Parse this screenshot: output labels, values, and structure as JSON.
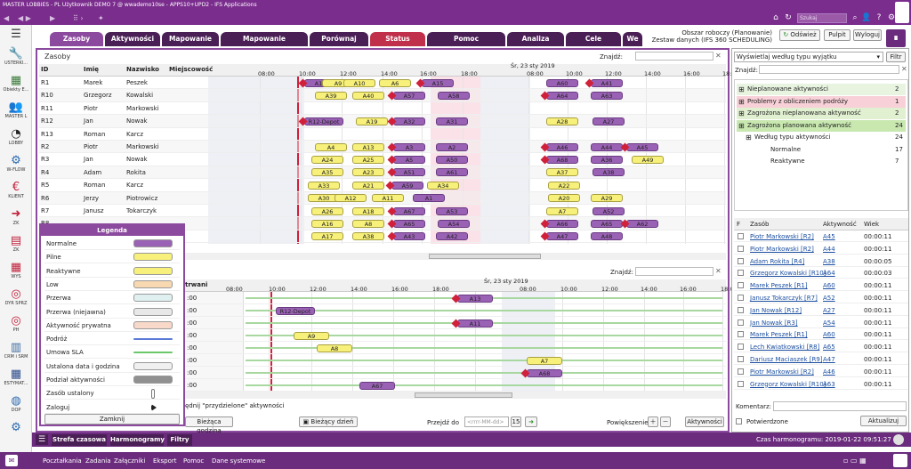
{
  "window": {
    "title": "MASTER LOBBIES - PL Użytkownik DEMO 7 @ wwademo10se - APPS10+UPD2 - IFS Applications",
    "search_placeholder": "Szukaj"
  },
  "sidebar": [
    {
      "label": "USTERKI...",
      "icon": "wrench-icon",
      "color": "#b03060"
    },
    {
      "label": "Obiekty E...",
      "icon": "building-icon",
      "color": "#3a7a3a"
    },
    {
      "label": "MASTER L",
      "icon": "people-icon",
      "color": "#222222"
    },
    {
      "label": "LOBBY",
      "icon": "gauge-icon",
      "color": "#222222"
    },
    {
      "label": "W-FLOW",
      "icon": "flow-icon",
      "color": "#2a6ab0"
    },
    {
      "label": "KLIENT",
      "icon": "euro-icon",
      "color": "#c0203a"
    },
    {
      "label": "ZK",
      "icon": "arrow-icon",
      "color": "#c0203a"
    },
    {
      "label": "ZK",
      "icon": "calendar-icon",
      "color": "#c0203a"
    },
    {
      "label": "WYS",
      "icon": "grid-icon",
      "color": "#c0203a"
    },
    {
      "label": "DYR SPRZ",
      "icon": "target-icon",
      "color": "#c0203a"
    },
    {
      "label": "PH",
      "icon": "target-icon",
      "color": "#c0203a"
    },
    {
      "label": "CRM i SRM",
      "icon": "book-icon",
      "color": "#3a6aa0"
    },
    {
      "label": "ESTYMAT...",
      "icon": "calc-icon",
      "color": "#2a4a8a"
    },
    {
      "label": "DOP",
      "icon": "globe-icon",
      "color": "#2a6ab0"
    },
    {
      "label": "",
      "icon": "gears-icon",
      "color": "#2a6ab0"
    }
  ],
  "tabs": [
    "Zasoby",
    "Aktywności",
    "Mapowanie",
    "Mapowanie zaawansowane",
    "Porównaj",
    "Status systemu",
    "Pomoc harmonogramu",
    "Analiza",
    "Cele",
    "We"
  ],
  "header": {
    "line1": "Obszar roboczy (Planowanie)",
    "line2": "Zestaw danych (IFS 360 SCHEDULING)",
    "refresh": "Odśwież",
    "desktop": "Pulpit",
    "logout": "Wyloguj"
  },
  "resources": {
    "title": "Zasoby",
    "find_label": "Znajdź:",
    "columns": [
      "ID",
      "Imię",
      "Nazwisko",
      "Miejscowość"
    ],
    "date_label": "Śr, 23 sty 2019",
    "ticks": [
      "08:00",
      "10:00",
      "12:00",
      "14:00",
      "16:00",
      "18:00",
      "08:00",
      "10:00",
      "12:00",
      "14:00",
      "16:00",
      "18:00"
    ],
    "rows": [
      {
        "id": "R1",
        "first": "Marek",
        "last": "Peszek",
        "bars": [
          {
            "l": "A14",
            "t": "p"
          },
          {
            "l": "A9",
            "t": "y"
          },
          {
            "l": "A10",
            "t": "y"
          },
          {
            "l": "A6",
            "t": "y"
          },
          {
            "l": "A15",
            "t": "p"
          },
          {
            "l": "A60",
            "t": "p"
          },
          {
            "l": "A41",
            "t": "p"
          }
        ]
      },
      {
        "id": "R10",
        "first": "Grzegorz",
        "last": "Kowalski",
        "bars": [
          {
            "l": "A39",
            "t": "y"
          },
          {
            "l": "A40",
            "t": "y"
          },
          {
            "l": "A57",
            "t": "p"
          },
          {
            "l": "A58",
            "t": "p"
          },
          {
            "l": "A64",
            "t": "p"
          },
          {
            "l": "A63",
            "t": "p"
          }
        ]
      },
      {
        "id": "R11",
        "first": "Piotr",
        "last": "Markowski",
        "bars": []
      },
      {
        "id": "R12",
        "first": "Jan",
        "last": "Nowak",
        "bars": [
          {
            "l": "R12-Depot",
            "t": "p"
          },
          {
            "l": "A19",
            "t": "y"
          },
          {
            "l": "A32",
            "t": "p"
          },
          {
            "l": "A31",
            "t": "p"
          },
          {
            "l": "A28",
            "t": "y"
          },
          {
            "l": "A27",
            "t": "p"
          }
        ]
      },
      {
        "id": "R13",
        "first": "Roman",
        "last": "Karcz",
        "bars": []
      },
      {
        "id": "R2",
        "first": "Piotr",
        "last": "Markowski",
        "bars": [
          {
            "l": "A4",
            "t": "y"
          },
          {
            "l": "A13",
            "t": "y"
          },
          {
            "l": "A3",
            "t": "p"
          },
          {
            "l": "A2",
            "t": "p"
          },
          {
            "l": "A46",
            "t": "p"
          },
          {
            "l": "A44",
            "t": "p"
          },
          {
            "l": "A45",
            "t": "p"
          }
        ]
      },
      {
        "id": "R3",
        "first": "Jan",
        "last": "Nowak",
        "bars": [
          {
            "l": "A24",
            "t": "y"
          },
          {
            "l": "A25",
            "t": "y"
          },
          {
            "l": "A5",
            "t": "p"
          },
          {
            "l": "A50",
            "t": "p"
          },
          {
            "l": "A68",
            "t": "p"
          },
          {
            "l": "A36",
            "t": "p"
          },
          {
            "l": "A49",
            "t": "y"
          }
        ]
      },
      {
        "id": "R4",
        "first": "Adam",
        "last": "Rokita",
        "bars": [
          {
            "l": "A35",
            "t": "y"
          },
          {
            "l": "A23",
            "t": "y"
          },
          {
            "l": "A51",
            "t": "p"
          },
          {
            "l": "A61",
            "t": "p"
          },
          {
            "l": "A37",
            "t": "y"
          },
          {
            "l": "A38",
            "t": "p"
          }
        ]
      },
      {
        "id": "R5",
        "first": "Roman",
        "last": "Karcz",
        "bars": [
          {
            "l": "A33",
            "t": "y"
          },
          {
            "l": "A21",
            "t": "y"
          },
          {
            "l": "A59",
            "t": "p"
          },
          {
            "l": "A34",
            "t": "y"
          },
          {
            "l": "A22",
            "t": "y"
          }
        ]
      },
      {
        "id": "R6",
        "first": "Jerzy",
        "last": "Piotrowicz",
        "bars": [
          {
            "l": "A30",
            "t": "y"
          },
          {
            "l": "A12",
            "t": "y"
          },
          {
            "l": "A11",
            "t": "y"
          },
          {
            "l": "A1",
            "t": "p"
          },
          {
            "l": "A20",
            "t": "y"
          },
          {
            "l": "A29",
            "t": "y"
          }
        ]
      },
      {
        "id": "R7",
        "first": "Janusz",
        "last": "Tokarczyk",
        "bars": [
          {
            "l": "A26",
            "t": "y"
          },
          {
            "l": "A18",
            "t": "y"
          },
          {
            "l": "A67",
            "t": "p"
          },
          {
            "l": "A53",
            "t": "p"
          },
          {
            "l": "A7",
            "t": "y"
          },
          {
            "l": "A52",
            "t": "p"
          }
        ]
      },
      {
        "id": "R8",
        "first": "",
        "last": "",
        "bars": [
          {
            "l": "A16",
            "t": "y"
          },
          {
            "l": "A8",
            "t": "y"
          },
          {
            "l": "A65",
            "t": "p"
          },
          {
            "l": "A54",
            "t": "p"
          },
          {
            "l": "A66",
            "t": "p"
          },
          {
            "l": "A65",
            "t": "p"
          },
          {
            "l": "A62",
            "t": "p"
          }
        ]
      },
      {
        "id": "R9",
        "first": "",
        "last": "",
        "bars": [
          {
            "l": "A17",
            "t": "y"
          },
          {
            "l": "A38",
            "t": "y"
          },
          {
            "l": "A43",
            "t": "p"
          },
          {
            "l": "A42",
            "t": "p"
          },
          {
            "l": "A47",
            "t": "p"
          },
          {
            "l": "A48",
            "t": "p"
          }
        ]
      }
    ]
  },
  "activities": {
    "find_label": "Znajdź:",
    "col": "trwani",
    "date_label": "Śr, 23 sty 2019",
    "ticks": [
      "08:00",
      "10:00",
      "12:00",
      "14:00",
      "16:00",
      "18:00",
      "08:00",
      "10:00",
      "12:00",
      "14:00",
      "16:00",
      "18:00"
    ],
    "rows": [
      ":00",
      ":00",
      ":00",
      ":00",
      ":00",
      ":00",
      ":00",
      ":00"
    ],
    "bars": [
      {
        "l": "A13",
        "t": "p"
      },
      {
        "l": "R12-Depot",
        "t": "p"
      },
      {
        "l": "A11",
        "t": "p"
      },
      {
        "l": "A9",
        "t": "y"
      },
      {
        "l": "A8",
        "t": "y"
      },
      {
        "l": "A7",
        "t": "y"
      },
      {
        "l": "A68",
        "t": "p"
      },
      {
        "l": "A67",
        "t": "p"
      }
    ],
    "filter_text": "ędnij \"przydzielone\" aktywności"
  },
  "legend": {
    "title": "Legenda",
    "items": [
      {
        "label": "Normalne",
        "color": "#9a62b4"
      },
      {
        "label": "Pilne",
        "color": "#f7f07a"
      },
      {
        "label": "Reaktywne",
        "color": "#f7f07a"
      },
      {
        "label": "Low",
        "color": "#f8d8b0"
      },
      {
        "label": "Przerwa",
        "color": "#e0f0f0"
      },
      {
        "label": "Przerwa (niejawna)",
        "color": "#e8e8e8"
      },
      {
        "label": "Aktywność prywatna",
        "color": "#f8d8c8"
      },
      {
        "label": "Podróż",
        "color": "#5a7ad8"
      },
      {
        "label": "Umowa SLA",
        "color": "#6ac86a"
      },
      {
        "label": "Ustalona data i godzina",
        "color": "#f0f0f0"
      },
      {
        "label": "Podział aktywności",
        "color": "#909090"
      },
      {
        "label": "Zasób ustalony",
        "color": "#ffffff"
      },
      {
        "label": "Zaloguj",
        "color": "#ffffff"
      }
    ],
    "close": "Zamknij"
  },
  "toolbar": {
    "current_time": "Bieżąca godzina",
    "current_day": "Bieżący dzień",
    "goto_label": "Przejdź do",
    "date_placeholder": "<rrrr-MM-dd>",
    "zoom": "Powiększenie",
    "activities": "Aktywności"
  },
  "right": {
    "dropdown": "Wyświetlaj według typu wyjątku",
    "filter_btn": "Filtr",
    "find_label": "Znajdź:",
    "tree": [
      {
        "label": "Nieplanowane aktywności",
        "count": "2",
        "bg": "#e8f4e0",
        "indent": 0
      },
      {
        "label": "Problemy z obliczeniem podróży",
        "count": "1",
        "bg": "#f8d0d8",
        "indent": 0
      },
      {
        "label": "Zagrożona nieplanowana aktywność",
        "count": "2",
        "bg": "#e0f0d0",
        "indent": 0
      },
      {
        "label": "Zagrożona planowana aktywność",
        "count": "24",
        "bg": "#c8e8b0",
        "indent": 0
      },
      {
        "label": "Według typu aktywności",
        "count": "24",
        "bg": "#ffffff",
        "indent": 1
      },
      {
        "label": "Normalne",
        "count": "17",
        "bg": "#ffffff",
        "indent": 2
      },
      {
        "label": "Reaktywne",
        "count": "7",
        "bg": "#ffffff",
        "indent": 2
      }
    ],
    "table_cols": [
      "F",
      "Zasób",
      "Aktywność",
      "Wiek"
    ],
    "table": [
      {
        "res": "Piotr Markowski [R2]",
        "act": "A45",
        "age": "00:00:11"
      },
      {
        "res": "Piotr Markowski [R2]",
        "act": "A44",
        "age": "00:00:11"
      },
      {
        "res": "Adam Rokita [R4]",
        "act": "A38",
        "age": "00:00:05"
      },
      {
        "res": "Grzegorz Kowalski [R10]",
        "act": "A64",
        "age": "00:00:03"
      },
      {
        "res": "Marek Peszek [R1]",
        "act": "A60",
        "age": "00:00:11"
      },
      {
        "res": "Janusz Tokarczyk [R7]",
        "act": "A52",
        "age": "00:00:11"
      },
      {
        "res": "Jan Nowak [R12]",
        "act": "A27",
        "age": "00:00:11"
      },
      {
        "res": "Jan Nowak [R3]",
        "act": "A54",
        "age": "00:00:11"
      },
      {
        "res": "Marek Peszek [R1]",
        "act": "A60",
        "age": "00:00:11"
      },
      {
        "res": "Lech Kwiatkowski [R8]",
        "act": "A65",
        "age": "00:00:11"
      },
      {
        "res": "Dariusz Maciaszek [R9]",
        "act": "A47",
        "age": "00:00:11"
      },
      {
        "res": "Piotr Markowski [R2]",
        "act": "A46",
        "age": "00:00:11"
      },
      {
        "res": "Grzegorz Kowalski [R10]",
        "act": "A63",
        "age": "00:00:11"
      }
    ],
    "comment_label": "Komentarz:",
    "confirmed_label": "Potwierdzone",
    "update_btn": "Aktualizuj"
  },
  "bottom": {
    "tabs": [
      "Strefa czasowa",
      "Harmonogramy",
      "Filtry"
    ],
    "schedule_time": "Czas harmonogramu: 2019-01-22 09:51:27"
  },
  "footer": [
    "Pocztałkania",
    "Zadania",
    "Załączniki",
    "Eksport",
    "Pomoc",
    "Dane systemowe"
  ]
}
